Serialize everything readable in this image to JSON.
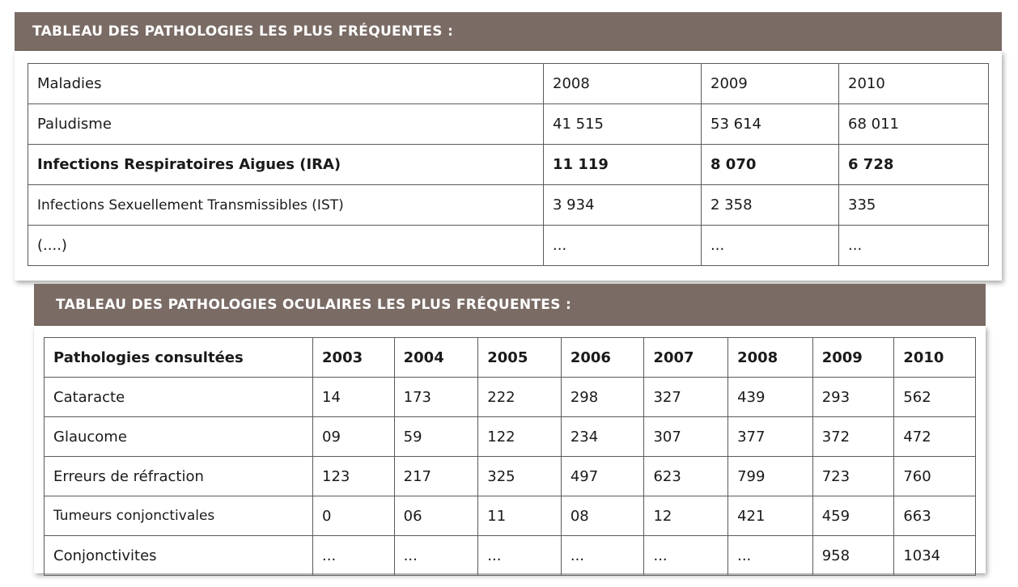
{
  "table1": {
    "title": "TABLEAU DES PATHOLOGIES LES PLUS FRÉQUENTES :",
    "headers": [
      "Maladies",
      "2008",
      "2009",
      "2010"
    ],
    "rows": [
      [
        "Paludisme",
        "41 515",
        "53 614",
        "68 011"
      ],
      [
        "Infections Respiratoires Aigues (IRA)",
        "11 119",
        "8 070",
        "6 728"
      ],
      [
        "Infections Sexuellement Transmissibles (IST)",
        "3 934",
        "2 358",
        "335"
      ],
      [
        "(....)",
        "...",
        "...",
        "..."
      ]
    ]
  },
  "table2": {
    "title": "TABLEAU DES PATHOLOGIES OCULAIRES LES PLUS FRÉQUENTES :",
    "headers": [
      "Pathologies consultées",
      "2003",
      "2004",
      "2005",
      "2006",
      "2007",
      "2008",
      "2009",
      "2010"
    ],
    "rows": [
      [
        "Cataracte",
        "14",
        "173",
        "222",
        "298",
        "327",
        "439",
        "293",
        "562"
      ],
      [
        "Glaucome",
        "09",
        "59",
        "122",
        "234",
        "307",
        "377",
        "372",
        "472"
      ],
      [
        "Erreurs de réfraction",
        "123",
        "217",
        "325",
        "497",
        "623",
        "799",
        "723",
        "760"
      ],
      [
        "Tumeurs conjonctivales",
        "0",
        "06",
        "11",
        "08",
        "12",
        "421",
        "459",
        "663"
      ],
      [
        "Conjonctivites",
        "...",
        "...",
        "...",
        "...",
        "...",
        "...",
        "958",
        "1034"
      ]
    ]
  }
}
